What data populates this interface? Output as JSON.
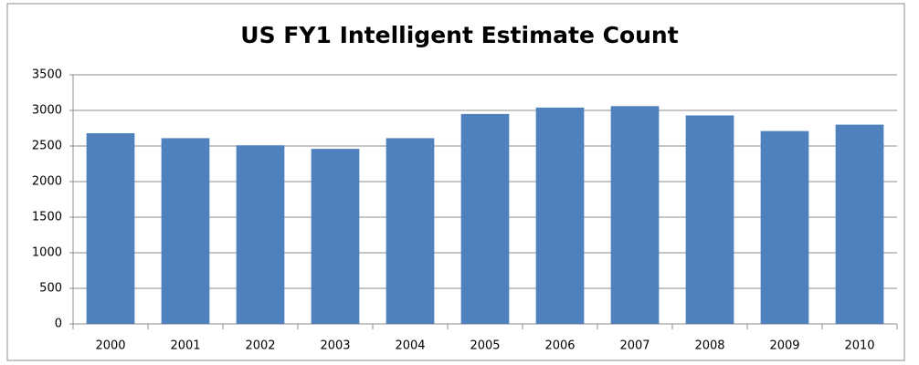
{
  "chart_data": {
    "type": "bar",
    "title": "US FY1 Intelligent Estimate Count",
    "categories": [
      "2000",
      "2001",
      "2002",
      "2003",
      "2004",
      "2005",
      "2006",
      "2007",
      "2008",
      "2009",
      "2010"
    ],
    "values": [
      2680,
      2610,
      2510,
      2460,
      2610,
      2950,
      3040,
      3060,
      2930,
      2710,
      2800
    ],
    "color": "#4f81bd",
    "ylim": [
      0,
      3500
    ],
    "yticks": [
      0,
      500,
      1000,
      1500,
      2000,
      2500,
      3000,
      3500
    ],
    "grid": true
  }
}
